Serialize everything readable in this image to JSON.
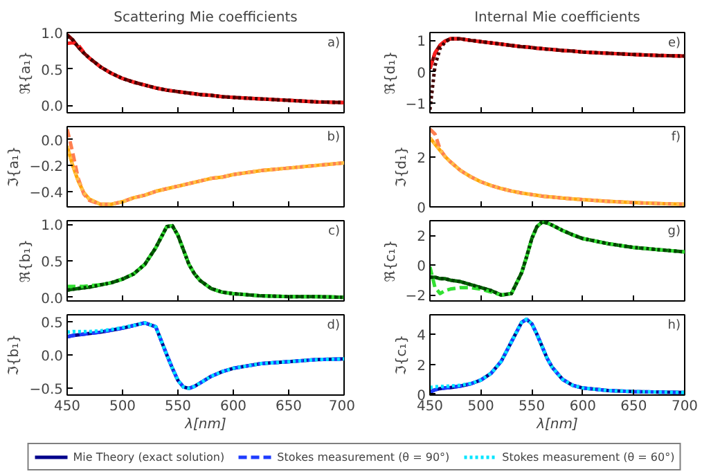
{
  "chart_data": [
    {
      "type": "line",
      "title": "Scattering Mie coefficients",
      "ylabel": "ℜ{a₁}",
      "annotations": [
        "a)"
      ],
      "tick_labels": "y",
      "x": [
        450,
        455,
        460,
        465,
        470,
        480,
        490,
        500,
        510,
        520,
        530,
        540,
        545,
        550,
        555,
        560,
        565,
        570,
        580,
        590,
        600,
        625,
        650,
        675,
        700
      ],
      "xlim": [
        450,
        700
      ],
      "xticks": [
        450,
        500,
        550,
        600,
        650,
        700
      ],
      "ylim": [
        -0.1,
        1.0
      ],
      "yticks": [
        {
          "value": 0,
          "label": "0.0"
        },
        0.5,
        {
          "value": 1,
          "label": "1.0"
        }
      ],
      "series": [
        {
          "color": "#800000",
          "line_style": "solid",
          "values": [
            0.97,
            0.9,
            0.8,
            0.72,
            0.65,
            0.53,
            0.44,
            0.37,
            0.32,
            0.28,
            0.24,
            0.21,
            0.2,
            0.19,
            0.18,
            0.17,
            0.16,
            0.15,
            0.14,
            0.12,
            0.11,
            0.09,
            0.07,
            0.05,
            0.04
          ]
        },
        {
          "color": "#ff2020",
          "line_style": "dashed",
          "values": [
            0.85,
            0.86,
            0.83,
            0.73,
            0.65,
            0.53,
            0.44,
            0.37,
            0.32,
            0.28,
            0.24,
            0.21,
            0.2,
            0.19,
            0.18,
            0.17,
            0.16,
            0.15,
            0.14,
            0.12,
            0.11,
            0.09,
            0.07,
            0.05,
            0.04
          ]
        },
        {
          "color": "#400000",
          "line_style": "dotted",
          "values": [
            0.95,
            0.9,
            0.8,
            0.72,
            0.65,
            0.53,
            0.44,
            0.37,
            0.32,
            0.28,
            0.24,
            0.21,
            0.2,
            0.19,
            0.18,
            0.17,
            0.16,
            0.15,
            0.14,
            0.12,
            0.11,
            0.09,
            0.07,
            0.05,
            0.04
          ]
        }
      ]
    },
    {
      "type": "line",
      "ylabel": "ℑ{a₁}",
      "annotations": [
        "b)"
      ],
      "tick_labels": "y",
      "x": [
        450,
        455,
        460,
        465,
        470,
        480,
        490,
        500,
        510,
        520,
        530,
        540,
        545,
        550,
        555,
        560,
        565,
        570,
        580,
        590,
        600,
        625,
        650,
        675,
        700
      ],
      "xlim": [
        450,
        700
      ],
      "xticks": [
        450,
        500,
        550,
        600,
        650,
        700
      ],
      "ylim": [
        -0.52,
        0.1
      ],
      "yticks": [
        {
          "value": -0.4,
          "label": "−0.4"
        },
        {
          "value": -0.2,
          "label": "−0.2"
        },
        {
          "value": 0,
          "label": "0.0"
        }
      ],
      "series": [
        {
          "color": "#ffa500",
          "line_style": "solid",
          "values": [
            -0.05,
            -0.2,
            -0.32,
            -0.41,
            -0.46,
            -0.5,
            -0.5,
            -0.48,
            -0.45,
            -0.43,
            -0.4,
            -0.38,
            -0.37,
            -0.36,
            -0.35,
            -0.34,
            -0.33,
            -0.32,
            -0.3,
            -0.29,
            -0.27,
            -0.24,
            -0.22,
            -0.2,
            -0.18
          ]
        },
        {
          "color": "#ff7f50",
          "line_style": "dashed",
          "values": [
            0.08,
            -0.1,
            -0.3,
            -0.42,
            -0.47,
            -0.5,
            -0.5,
            -0.48,
            -0.45,
            -0.43,
            -0.4,
            -0.38,
            -0.37,
            -0.36,
            -0.35,
            -0.34,
            -0.33,
            -0.32,
            -0.3,
            -0.29,
            -0.27,
            -0.24,
            -0.22,
            -0.2,
            -0.18
          ]
        },
        {
          "color": "#ffc04d",
          "line_style": "dotted",
          "values": [
            -0.05,
            -0.2,
            -0.32,
            -0.41,
            -0.46,
            -0.5,
            -0.5,
            -0.48,
            -0.45,
            -0.43,
            -0.4,
            -0.38,
            -0.37,
            -0.36,
            -0.35,
            -0.34,
            -0.33,
            -0.32,
            -0.3,
            -0.29,
            -0.27,
            -0.24,
            -0.22,
            -0.2,
            -0.18
          ]
        }
      ]
    },
    {
      "type": "line",
      "ylabel": "ℜ{b₁}",
      "annotations": [
        "c)"
      ],
      "tick_labels": "y",
      "x": [
        450,
        455,
        460,
        465,
        470,
        480,
        490,
        500,
        510,
        520,
        530,
        540,
        545,
        550,
        555,
        560,
        565,
        570,
        580,
        590,
        600,
        625,
        650,
        675,
        700
      ],
      "xlim": [
        450,
        700
      ],
      "xticks": [
        450,
        500,
        550,
        600,
        650,
        700
      ],
      "ylim": [
        -0.05,
        1.05
      ],
      "yticks": [
        {
          "value": 0,
          "label": "0.0"
        },
        0.5,
        {
          "value": 1,
          "label": "1.0"
        }
      ],
      "series": [
        {
          "color": "#006400",
          "line_style": "solid",
          "values": [
            0.1,
            0.11,
            0.12,
            0.13,
            0.14,
            0.17,
            0.2,
            0.25,
            0.32,
            0.45,
            0.68,
            0.97,
            0.98,
            0.85,
            0.65,
            0.45,
            0.32,
            0.23,
            0.12,
            0.07,
            0.05,
            0.02,
            0.01,
            0.01,
            0.0
          ]
        },
        {
          "color": "#32e032",
          "line_style": "dashed",
          "values": [
            0.15,
            0.15,
            0.15,
            0.15,
            0.16,
            0.17,
            0.2,
            0.25,
            0.32,
            0.45,
            0.68,
            0.97,
            0.98,
            0.85,
            0.65,
            0.45,
            0.32,
            0.23,
            0.12,
            0.07,
            0.05,
            0.02,
            0.01,
            0.01,
            0.0
          ]
        },
        {
          "color": "#004000",
          "line_style": "dotted",
          "values": [
            0.1,
            0.11,
            0.12,
            0.13,
            0.14,
            0.17,
            0.2,
            0.25,
            0.32,
            0.45,
            0.68,
            0.97,
            0.98,
            0.85,
            0.65,
            0.45,
            0.32,
            0.23,
            0.12,
            0.07,
            0.05,
            0.02,
            0.01,
            0.01,
            0.0
          ]
        }
      ]
    },
    {
      "type": "line",
      "ylabel": "ℑ{b₁}",
      "xlabel": "λ[nm]",
      "annotations": [
        "d)"
      ],
      "x": [
        450,
        455,
        460,
        465,
        470,
        480,
        490,
        500,
        510,
        520,
        530,
        540,
        545,
        550,
        555,
        560,
        565,
        570,
        580,
        590,
        600,
        625,
        650,
        675,
        700
      ],
      "xlim": [
        450,
        700
      ],
      "xticks": [
        450,
        500,
        550,
        600,
        650,
        700
      ],
      "ylim": [
        -0.6,
        0.6
      ],
      "yticks": [
        {
          "value": -0.5,
          "label": "−0.5"
        },
        {
          "value": 0,
          "label": "0.0"
        },
        0.5
      ],
      "series": [
        {
          "color": "#00008b",
          "line_style": "solid",
          "values": [
            0.27,
            0.29,
            0.3,
            0.31,
            0.32,
            0.34,
            0.37,
            0.4,
            0.44,
            0.48,
            0.42,
            0.0,
            -0.2,
            -0.38,
            -0.48,
            -0.5,
            -0.47,
            -0.42,
            -0.32,
            -0.25,
            -0.2,
            -0.13,
            -0.1,
            -0.07,
            -0.06
          ]
        },
        {
          "color": "#1e3cff",
          "line_style": "dashed",
          "values": [
            0.27,
            0.29,
            0.3,
            0.31,
            0.32,
            0.34,
            0.37,
            0.4,
            0.44,
            0.48,
            0.42,
            0.0,
            -0.2,
            -0.38,
            -0.48,
            -0.5,
            -0.47,
            -0.42,
            -0.32,
            -0.25,
            -0.2,
            -0.13,
            -0.1,
            -0.07,
            -0.06
          ]
        },
        {
          "color": "#00e5ff",
          "line_style": "dotted",
          "values": [
            0.34,
            0.35,
            0.35,
            0.35,
            0.35,
            0.36,
            0.38,
            0.41,
            0.44,
            0.48,
            0.42,
            0.0,
            -0.2,
            -0.38,
            -0.48,
            -0.5,
            -0.47,
            -0.42,
            -0.32,
            -0.25,
            -0.2,
            -0.13,
            -0.1,
            -0.07,
            -0.06
          ]
        }
      ]
    },
    {
      "type": "line",
      "title": "Internal Mie coefficients",
      "ylabel": "ℜ{d₁}",
      "annotations": [
        "e)"
      ],
      "tick_labels": "y",
      "x": [
        450,
        455,
        460,
        465,
        470,
        480,
        490,
        500,
        510,
        520,
        530,
        540,
        545,
        550,
        555,
        560,
        565,
        570,
        580,
        590,
        600,
        625,
        650,
        675,
        700
      ],
      "xlim": [
        450,
        700
      ],
      "xticks": [
        450,
        500,
        550,
        600,
        650,
        700
      ],
      "ylim": [
        -1.3,
        1.25
      ],
      "yticks": [
        {
          "value": -1,
          "label": "−1"
        },
        0,
        1
      ],
      "series": [
        {
          "color": "#800000",
          "line_style": "solid",
          "values": [
            0.1,
            0.6,
            0.85,
            0.98,
            1.05,
            1.05,
            1.0,
            0.96,
            0.92,
            0.88,
            0.84,
            0.8,
            0.79,
            0.77,
            0.75,
            0.74,
            0.72,
            0.71,
            0.68,
            0.66,
            0.63,
            0.59,
            0.55,
            0.52,
            0.5
          ]
        },
        {
          "color": "#ff2020",
          "line_style": "dashed",
          "values": [
            0.1,
            0.6,
            0.85,
            0.98,
            1.05,
            1.05,
            1.0,
            0.96,
            0.92,
            0.88,
            0.84,
            0.8,
            0.79,
            0.77,
            0.75,
            0.74,
            0.72,
            0.71,
            0.68,
            0.66,
            0.63,
            0.59,
            0.55,
            0.52,
            0.5
          ]
        },
        {
          "color": "#400000",
          "line_style": "dotted",
          "values": [
            -1.2,
            0.2,
            0.75,
            0.95,
            1.05,
            1.05,
            1.0,
            0.96,
            0.92,
            0.88,
            0.84,
            0.8,
            0.79,
            0.77,
            0.75,
            0.74,
            0.72,
            0.71,
            0.68,
            0.66,
            0.63,
            0.59,
            0.55,
            0.52,
            0.5
          ]
        }
      ]
    },
    {
      "type": "line",
      "ylabel": "ℑ{d₁}",
      "annotations": [
        "f)"
      ],
      "tick_labels": "y",
      "x": [
        450,
        455,
        460,
        465,
        470,
        480,
        490,
        500,
        510,
        520,
        530,
        540,
        545,
        550,
        555,
        560,
        565,
        570,
        580,
        590,
        600,
        625,
        650,
        675,
        700
      ],
      "xlim": [
        450,
        700
      ],
      "xticks": [
        450,
        500,
        550,
        600,
        650,
        700
      ],
      "ylim": [
        0,
        3.2
      ],
      "yticks": [
        0,
        2
      ],
      "series": [
        {
          "color": "#ffa500",
          "line_style": "solid",
          "values": [
            2.75,
            2.5,
            2.25,
            2.0,
            1.8,
            1.45,
            1.2,
            1.0,
            0.85,
            0.73,
            0.63,
            0.55,
            0.52,
            0.49,
            0.46,
            0.43,
            0.41,
            0.39,
            0.35,
            0.32,
            0.29,
            0.22,
            0.17,
            0.13,
            0.1
          ]
        },
        {
          "color": "#ff7f50",
          "line_style": "dashed",
          "values": [
            3.1,
            2.9,
            2.3,
            2.0,
            1.8,
            1.45,
            1.2,
            1.0,
            0.85,
            0.73,
            0.63,
            0.55,
            0.52,
            0.49,
            0.46,
            0.43,
            0.41,
            0.39,
            0.35,
            0.32,
            0.29,
            0.22,
            0.17,
            0.13,
            0.1
          ]
        },
        {
          "color": "#ffc04d",
          "line_style": "dotted",
          "values": [
            2.75,
            2.5,
            2.25,
            2.0,
            1.8,
            1.45,
            1.2,
            1.0,
            0.85,
            0.73,
            0.63,
            0.55,
            0.52,
            0.49,
            0.46,
            0.43,
            0.41,
            0.39,
            0.35,
            0.32,
            0.29,
            0.22,
            0.17,
            0.13,
            0.1
          ]
        }
      ]
    },
    {
      "type": "line",
      "ylabel": "ℜ{c₁}",
      "annotations": [
        "g)"
      ],
      "tick_labels": "y",
      "x": [
        450,
        455,
        460,
        465,
        470,
        480,
        490,
        500,
        510,
        520,
        530,
        540,
        545,
        550,
        555,
        560,
        565,
        570,
        580,
        590,
        600,
        625,
        650,
        675,
        700
      ],
      "xlim": [
        450,
        700
      ],
      "xticks": [
        450,
        500,
        550,
        600,
        650,
        700
      ],
      "ylim": [
        -2.4,
        3.0
      ],
      "yticks": [
        {
          "value": -2,
          "label": "−2"
        },
        0,
        2
      ],
      "series": [
        {
          "color": "#006400",
          "line_style": "solid",
          "values": [
            -0.8,
            -0.8,
            -0.9,
            -0.9,
            -1.0,
            -1.1,
            -1.3,
            -1.5,
            -1.7,
            -2.0,
            -1.9,
            -0.5,
            0.6,
            1.8,
            2.6,
            2.9,
            2.85,
            2.7,
            2.35,
            2.05,
            1.8,
            1.45,
            1.2,
            1.05,
            0.9
          ]
        },
        {
          "color": "#32e032",
          "line_style": "dashed",
          "values": [
            -0.1,
            -1.5,
            -1.9,
            -1.7,
            -1.6,
            -1.5,
            -1.5,
            -1.6,
            -1.8,
            -2.0,
            -1.9,
            -0.5,
            0.6,
            1.8,
            2.6,
            2.9,
            2.85,
            2.7,
            2.35,
            2.05,
            1.8,
            1.45,
            1.2,
            1.05,
            0.9
          ]
        },
        {
          "color": "#004000",
          "line_style": "dotted",
          "values": [
            -0.8,
            -0.8,
            -0.9,
            -0.9,
            -1.0,
            -1.1,
            -1.3,
            -1.5,
            -1.7,
            -2.0,
            -1.9,
            -0.5,
            0.6,
            1.8,
            2.6,
            2.9,
            2.85,
            2.7,
            2.35,
            2.05,
            1.8,
            1.45,
            1.2,
            1.05,
            0.9
          ]
        }
      ]
    },
    {
      "type": "line",
      "ylabel": "ℑ{c₁}",
      "xlabel": "λ[nm]",
      "annotations": [
        "h)"
      ],
      "legend": "bottom",
      "x": [
        450,
        455,
        460,
        465,
        470,
        480,
        490,
        500,
        510,
        520,
        530,
        540,
        545,
        550,
        555,
        560,
        565,
        570,
        580,
        590,
        600,
        625,
        650,
        675,
        700
      ],
      "xlim": [
        450,
        700
      ],
      "xticks": [
        450,
        500,
        550,
        600,
        650,
        700
      ],
      "ylim": [
        -0.05,
        5.3
      ],
      "yticks": [
        0,
        2,
        4
      ],
      "series": [
        {
          "name": "Mie Theory (exact solution)",
          "color": "#00008b",
          "line_style": "solid",
          "values": [
            0.15,
            0.3,
            0.38,
            0.42,
            0.45,
            0.55,
            0.7,
            0.95,
            1.4,
            2.2,
            3.5,
            4.8,
            5.0,
            4.7,
            4.0,
            3.2,
            2.4,
            1.8,
            1.0,
            0.6,
            0.42,
            0.25,
            0.18,
            0.15,
            0.12
          ]
        },
        {
          "name": "Stokes measurement (θ = 90°)",
          "color": "#1e3cff",
          "line_style": "dashed",
          "values": [
            0.15,
            0.3,
            0.38,
            0.42,
            0.45,
            0.55,
            0.7,
            0.95,
            1.4,
            2.2,
            3.5,
            4.8,
            5.0,
            4.7,
            4.0,
            3.2,
            2.4,
            1.8,
            1.0,
            0.6,
            0.42,
            0.25,
            0.18,
            0.15,
            0.12
          ]
        },
        {
          "name": "Stokes measurement (θ = 60°)",
          "color": "#00e5ff",
          "line_style": "dotted",
          "values": [
            0.45,
            0.5,
            0.52,
            0.53,
            0.55,
            0.6,
            0.72,
            0.95,
            1.4,
            2.2,
            3.5,
            4.8,
            5.0,
            4.7,
            4.0,
            3.2,
            2.4,
            1.8,
            1.0,
            0.6,
            0.42,
            0.25,
            0.18,
            0.15,
            0.12
          ]
        }
      ]
    }
  ]
}
